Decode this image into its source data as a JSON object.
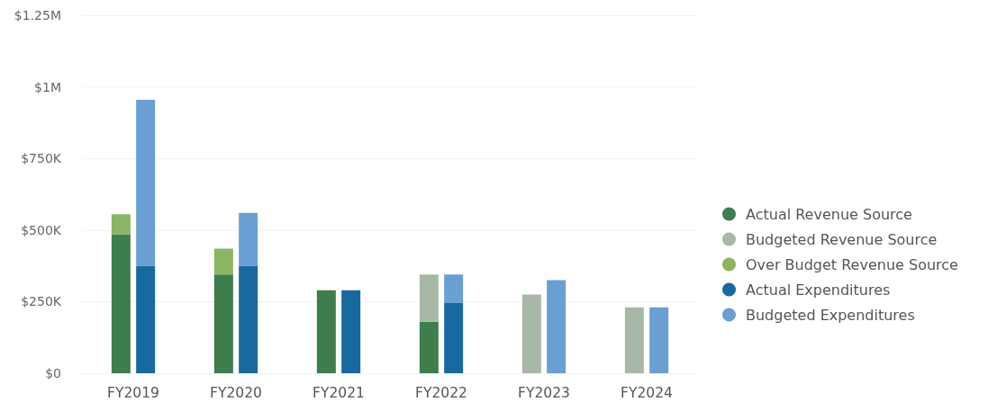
{
  "chart_data": [
    {
      "type": "bar",
      "stacked": true,
      "categories": [
        "FY2019",
        "FY2020",
        "FY2021",
        "FY2022",
        "FY2023",
        "FY2024"
      ],
      "series": [
        {
          "name": "Actual Revenue Source",
          "color": "#3e7d4c",
          "values": [
            485000,
            345000,
            290000,
            180000,
            null,
            null
          ]
        },
        {
          "name": "Budgeted Revenue Source",
          "color": "#a8b8a7",
          "values": [
            null,
            null,
            null,
            165000,
            275000,
            230000
          ]
        },
        {
          "name": "Over Budget Revenue Source",
          "color": "#8cb563",
          "values": [
            70000,
            90000,
            null,
            null,
            null,
            null
          ]
        }
      ],
      "ylim": [
        0,
        1250000
      ],
      "yticks": [
        {
          "value": 0,
          "label": "$0"
        },
        {
          "value": 250000,
          "label": "$250K"
        },
        {
          "value": 500000,
          "label": "$500K"
        },
        {
          "value": 750000,
          "label": "$750K"
        },
        {
          "value": 1000000,
          "label": "$1M"
        },
        {
          "value": 1250000,
          "label": "$1.25M"
        }
      ],
      "grid": "y",
      "legend": "right"
    },
    {
      "type": "bar",
      "stacked": true,
      "categories": [
        null,
        null,
        null,
        null,
        null,
        null
      ],
      "series": [
        {
          "name": "Actual Expenditures",
          "color": "#18699f",
          "values": [
            375000,
            375000,
            290000,
            245000,
            null,
            null
          ]
        },
        {
          "name": "Budgeted Expenditures",
          "color": "#6a9fd4",
          "values": [
            580000,
            185000,
            null,
            100000,
            325000,
            230000
          ]
        }
      ],
      "ylim": [
        0,
        1250000
      ],
      "legend": "right",
      "tick_labels": false
    }
  ]
}
